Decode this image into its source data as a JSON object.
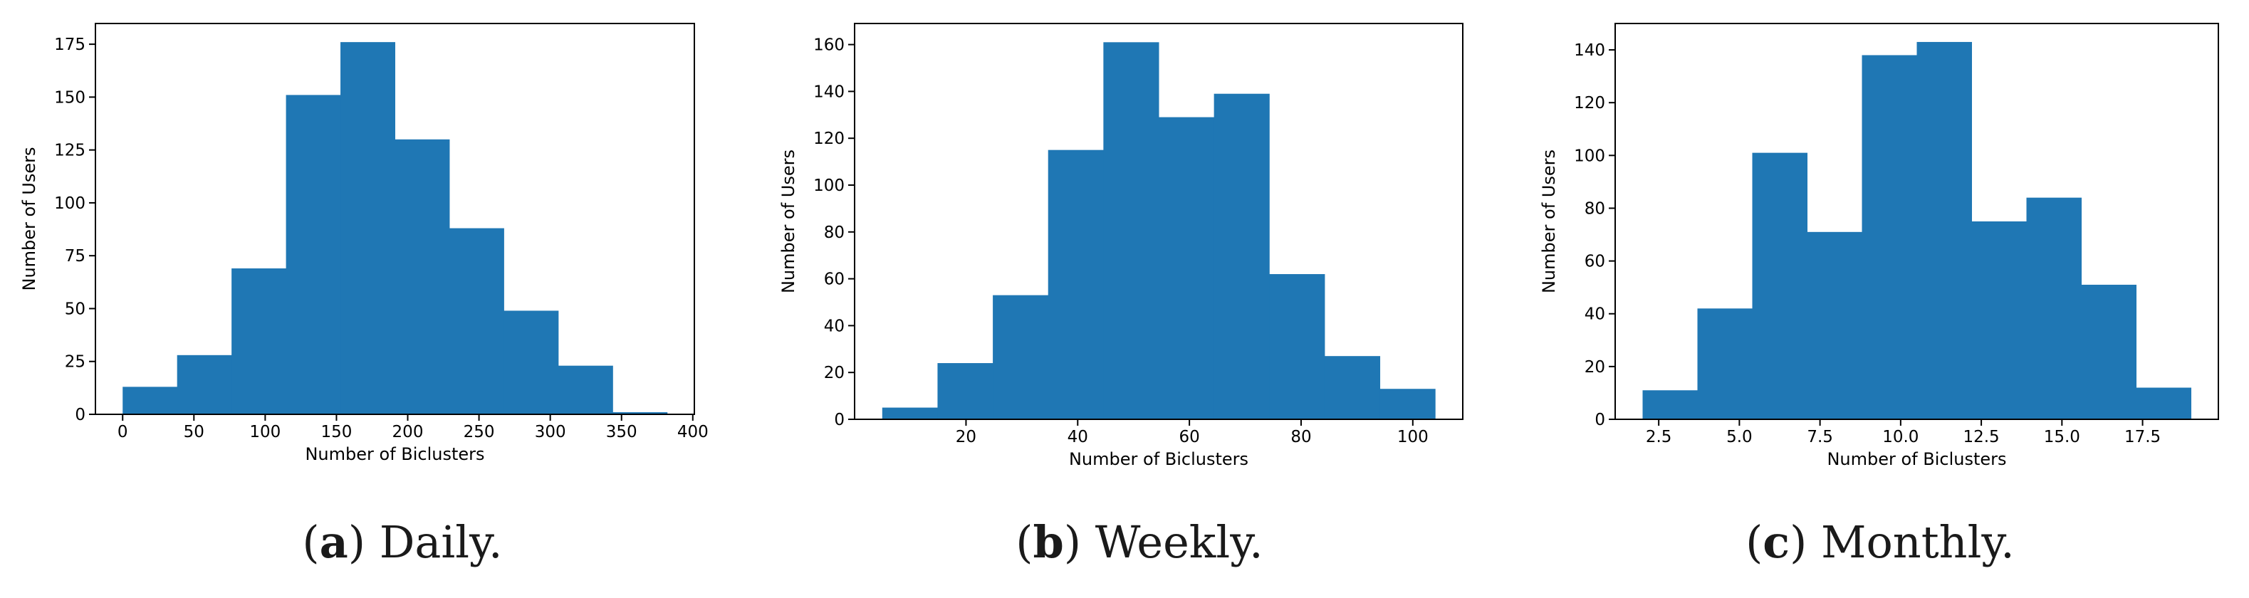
{
  "chart_data": [
    {
      "type": "bar",
      "xlabel": "Number of Biclusters",
      "ylabel": "Number of Users",
      "bin_edges": [
        0,
        38.2,
        76.4,
        114.6,
        152.8,
        191,
        229.2,
        267.4,
        305.6,
        343.8,
        382
      ],
      "values": [
        13,
        28,
        69,
        151,
        176,
        130,
        88,
        49,
        23,
        1
      ],
      "xlim": [
        -19.1,
        401.1
      ],
      "ylim": [
        0,
        184.8
      ],
      "xticks": [
        0,
        50,
        100,
        150,
        200,
        250,
        300,
        350,
        400
      ],
      "xtick_labels": [
        "0",
        "50",
        "100",
        "150",
        "200",
        "250",
        "300",
        "350",
        "400"
      ],
      "yticks": [
        0,
        25,
        50,
        75,
        100,
        125,
        150,
        175
      ],
      "ytick_labels": [
        "0",
        "25",
        "50",
        "75",
        "100",
        "125",
        "150",
        "175"
      ],
      "color": "#1f77b4",
      "grid": false
    },
    {
      "type": "bar",
      "xlabel": "Number of Biclusters",
      "ylabel": "Number of Users",
      "bin_edges": [
        5,
        14.9,
        24.8,
        34.7,
        44.6,
        54.5,
        64.4,
        74.3,
        84.2,
        94.1,
        104
      ],
      "values": [
        5,
        24,
        53,
        115,
        161,
        129,
        139,
        62,
        27,
        13
      ],
      "xlim": [
        0.05,
        108.95
      ],
      "ylim": [
        0,
        169
      ],
      "xticks": [
        20,
        40,
        60,
        80,
        100
      ],
      "xtick_labels": [
        "20",
        "40",
        "60",
        "80",
        "100"
      ],
      "yticks": [
        0,
        20,
        40,
        60,
        80,
        100,
        120,
        140,
        160
      ],
      "ytick_labels": [
        "0",
        "20",
        "40",
        "60",
        "80",
        "100",
        "120",
        "140",
        "160"
      ],
      "color": "#1f77b4",
      "grid": false
    },
    {
      "type": "bar",
      "xlabel": "Number of Biclusters",
      "ylabel": "Number of Users",
      "bin_edges": [
        2,
        3.7,
        5.4,
        7.1,
        8.8,
        10.5,
        12.2,
        13.9,
        15.6,
        17.3,
        19
      ],
      "values": [
        11,
        42,
        101,
        71,
        138,
        143,
        75,
        84,
        51,
        12
      ],
      "xlim": [
        1.15,
        19.85
      ],
      "ylim": [
        0,
        150
      ],
      "xticks": [
        2.5,
        5.0,
        7.5,
        10.0,
        12.5,
        15.0,
        17.5
      ],
      "xtick_labels": [
        "2.5",
        "5.0",
        "7.5",
        "10.0",
        "12.5",
        "15.0",
        "17.5"
      ],
      "yticks": [
        0,
        20,
        40,
        60,
        80,
        100,
        120,
        140
      ],
      "ytick_labels": [
        "0",
        "20",
        "40",
        "60",
        "80",
        "100",
        "120",
        "140"
      ],
      "color": "#1f77b4",
      "grid": false
    }
  ],
  "captions": [
    {
      "letter": "a",
      "text": "Daily."
    },
    {
      "letter": "b",
      "text": "Weekly."
    },
    {
      "letter": "c",
      "text": "Monthly."
    }
  ]
}
